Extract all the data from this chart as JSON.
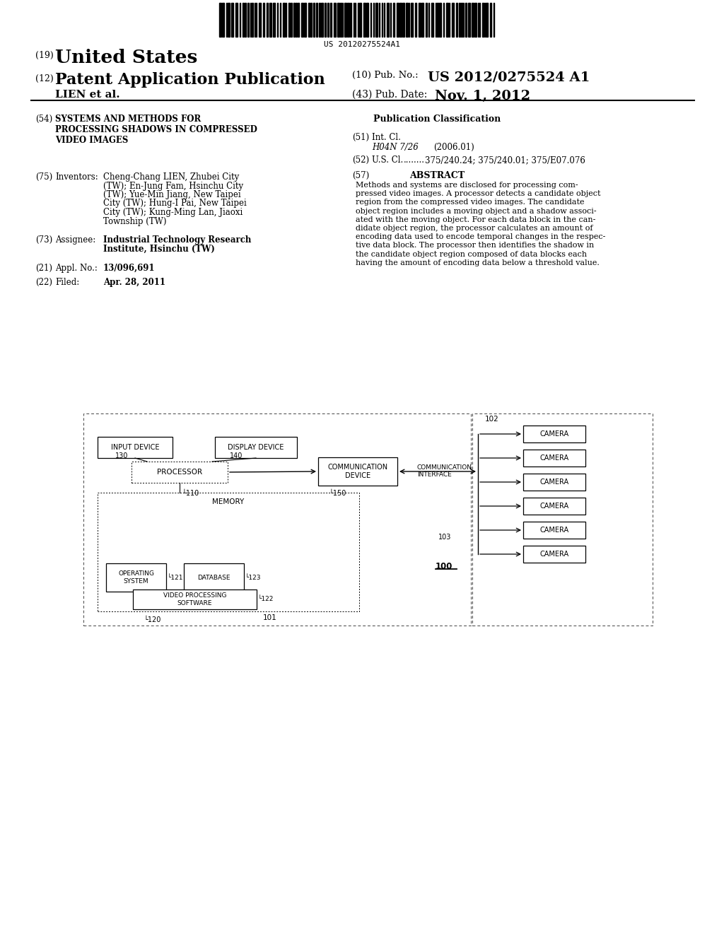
{
  "barcode_text": "US 20120275524A1",
  "header": {
    "line1_num": "(19)",
    "line1_text": "United States",
    "line2_num": "(12)",
    "line2_text": "Patent Application Publication",
    "pub_num_label": "(10) Pub. No.:",
    "pub_num_val": "US 2012/0275524 A1",
    "lien_label": "LIEN et al.",
    "pub_date_label": "(43) Pub. Date:",
    "pub_date_val": "Nov. 1, 2012"
  },
  "left_col": {
    "title_num": "(54)",
    "title_text": "SYSTEMS AND METHODS FOR\nPROCESSING SHADOWS IN COMPRESSED\nVIDEO IMAGES",
    "inventors_num": "(75)",
    "inventors_label": "Inventors:",
    "inventors_text": "Cheng-Chang LIEN, Zhubei City\n(TW); En-Jung Fam, Hsinchu City\n(TW); Yue-Min Jiang, New Taipei\nCity (TW); Hung-I Pai, New Taipei\nCity (TW); Kung-Ming Lan, Jiaoxi\nTownship (TW)",
    "assignee_num": "(73)",
    "assignee_label": "Assignee:",
    "assignee_text": "Industrial Technology Research\nInstitute, Hsinchu (TW)",
    "appl_num": "(21)",
    "appl_label": "Appl. No.:",
    "appl_val": "13/096,691",
    "filed_num": "(22)",
    "filed_label": "Filed:",
    "filed_val": "Apr. 28, 2011"
  },
  "right_col": {
    "pub_class_header": "Publication Classification",
    "int_cl_num": "(51)",
    "int_cl_label": "Int. Cl.",
    "int_cl_code": "H04N 7/26",
    "int_cl_year": "(2006.01)",
    "us_cl_num": "(52)",
    "us_cl_label": "U.S. Cl.",
    "us_cl_dots": "........",
    "us_cl_val": "375/240.24; 375/240.01; 375/E07.076",
    "abstract_num": "(57)",
    "abstract_label": "ABSTRACT",
    "abstract_text": "Methods and systems are disclosed for processing com-\npressed video images. A processor detects a candidate object\nregion from the compressed video images. The candidate\nobject region includes a moving object and a shadow associ-\nated with the moving object. For each data block in the can-\ndidate object region, the processor calculates an amount of\nencoding data used to encode temporal changes in the respec-\ntive data block. The processor then identifies the shadow in\nthe candidate object region composed of data blocks each\nhaving the amount of encoding data below a threshold value."
  }
}
